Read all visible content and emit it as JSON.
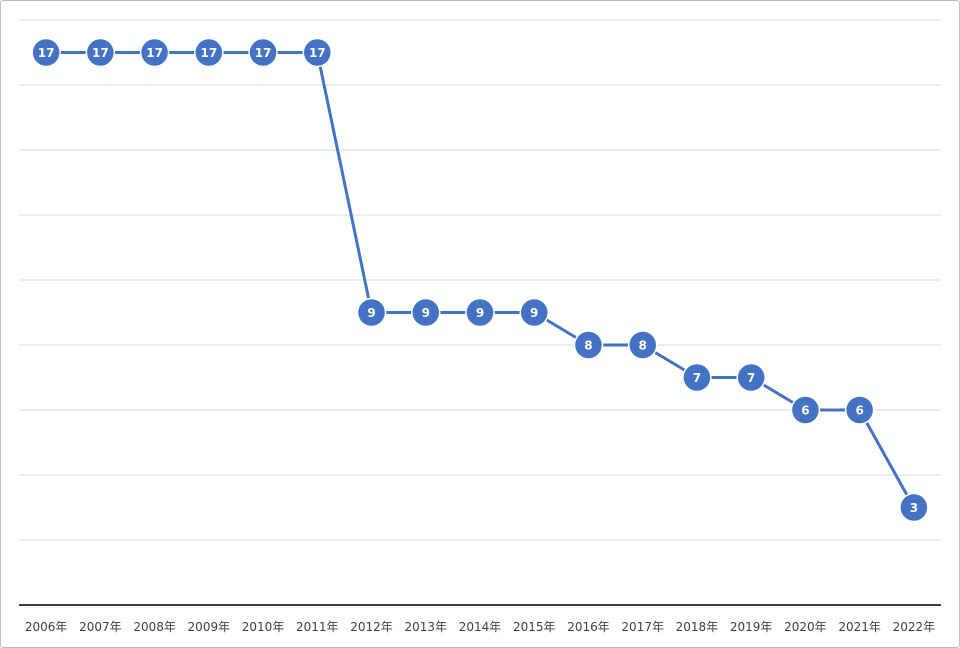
{
  "chart_data": {
    "type": "line",
    "categories": [
      "2006年",
      "2007年",
      "2008年",
      "2009年",
      "2010年",
      "2011年",
      "2012年",
      "2013年",
      "2014年",
      "2015年",
      "2016年",
      "2017年",
      "2018年",
      "2019年",
      "2020年",
      "2021年",
      "2022年"
    ],
    "series": [
      {
        "values": [
          17,
          17,
          17,
          17,
          17,
          17,
          9,
          9,
          9,
          9,
          8,
          8,
          7,
          7,
          6,
          6,
          3
        ]
      }
    ],
    "title": "",
    "xlabel": "",
    "ylabel": "",
    "ylim": [
      0,
      18
    ],
    "gridlines": true,
    "data_labels": true,
    "legend": "none",
    "colors": {
      "series": "#4472C4",
      "label_text": "#ffffff",
      "grid": "#d9d9d9",
      "axis": "#404040"
    }
  }
}
